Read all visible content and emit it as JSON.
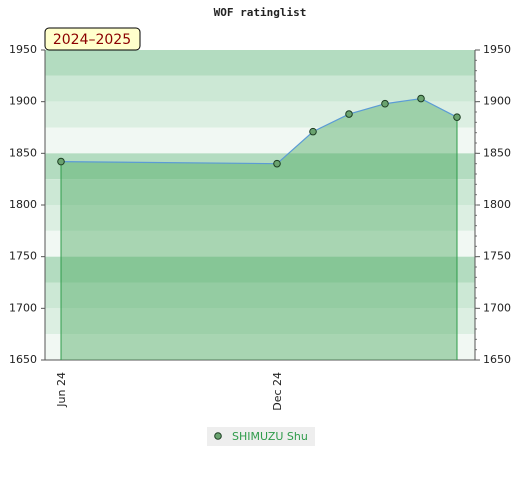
{
  "chart_data": {
    "type": "line",
    "title": "WOF ratinglist",
    "season_label": "2024–2025",
    "categories": [
      "Jun 24",
      null,
      null,
      null,
      null,
      null,
      "Dec 24",
      null,
      null,
      null,
      null,
      null
    ],
    "series": [
      {
        "name": "SHIMUZU Shu",
        "color": "#2e9b4a",
        "values": [
          1842,
          null,
          null,
          null,
          null,
          null,
          1840,
          1871,
          1888,
          1898,
          1903,
          1885
        ]
      }
    ],
    "connect_gaps": true,
    "ylim": [
      1650,
      1950
    ],
    "yticks": [
      1650,
      1700,
      1750,
      1800,
      1850,
      1900,
      1950
    ],
    "y2lim": [
      1650,
      1950
    ],
    "y2ticks": [
      1650,
      1700,
      1750,
      1800,
      1850,
      1900,
      1950
    ],
    "legend": "bottom"
  }
}
